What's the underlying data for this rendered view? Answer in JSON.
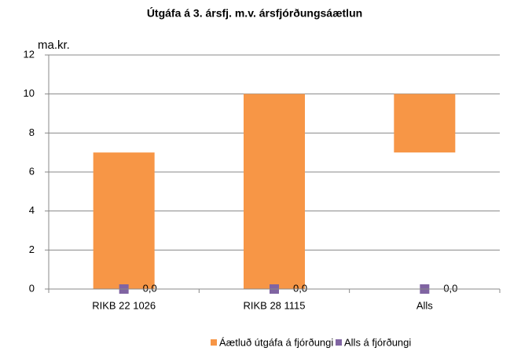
{
  "chart_data": {
    "type": "bar",
    "title": "Útgáfa á 3. ársfj. m.v. ársfjórðungsáætlun",
    "y_axis_label": "ma.kr.",
    "categories": [
      "RIKB 22 1026",
      "RIKB 28 1115",
      "Alls"
    ],
    "series": [
      {
        "name": "Áætluð útgáfa á fjórðungi",
        "color": "#f79646",
        "kind": "bar",
        "values": [
          7,
          10,
          3
        ],
        "base": [
          0,
          0,
          7
        ]
      },
      {
        "name": "Alls á fjórðungi",
        "color": "#8064a2",
        "kind": "marker",
        "values": [
          0,
          0,
          0
        ],
        "value_labels": [
          "0,0",
          "0,0",
          "0,0"
        ]
      }
    ],
    "ylim": [
      0,
      12
    ],
    "yticks": [
      0,
      2,
      4,
      6,
      8,
      10,
      12
    ],
    "grid": true,
    "legend": "bottom"
  }
}
